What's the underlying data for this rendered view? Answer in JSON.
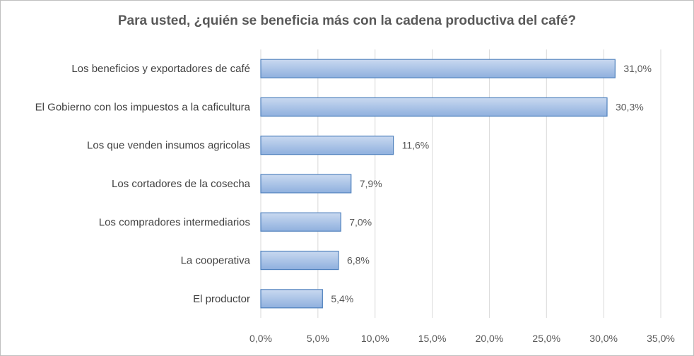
{
  "chart_data": {
    "type": "bar",
    "orientation": "horizontal",
    "title": "Para usted, ¿quién se beneficia más con la cadena productiva del café?",
    "categories": [
      "Los beneficios y exportadores de café",
      "El Gobierno con los impuestos a la caficultura",
      "Los que venden insumos agricolas",
      "Los cortadores de la cosecha",
      "Los compradores intermediarios",
      "La cooperativa",
      "El productor"
    ],
    "values": [
      31.0,
      30.3,
      11.6,
      7.9,
      7.0,
      6.8,
      5.4
    ],
    "data_labels": [
      "31,0%",
      "30,3%",
      "11,6%",
      "7,9%",
      "7,0%",
      "6,8%",
      "5,4%"
    ],
    "xlim": [
      0,
      35
    ],
    "xticks": [
      0,
      5,
      10,
      15,
      20,
      25,
      30,
      35
    ],
    "xtick_labels": [
      "0,0%",
      "5,0%",
      "10,0%",
      "15,0%",
      "20,0%",
      "25,0%",
      "30,0%",
      "35,0%"
    ],
    "grid": true,
    "legend": "none",
    "colors": {
      "bar_fill_top": "#c9d9f0",
      "bar_fill_bottom": "#8fb0de",
      "bar_stroke": "#4f81bd",
      "grid": "#d9d9d9"
    }
  }
}
